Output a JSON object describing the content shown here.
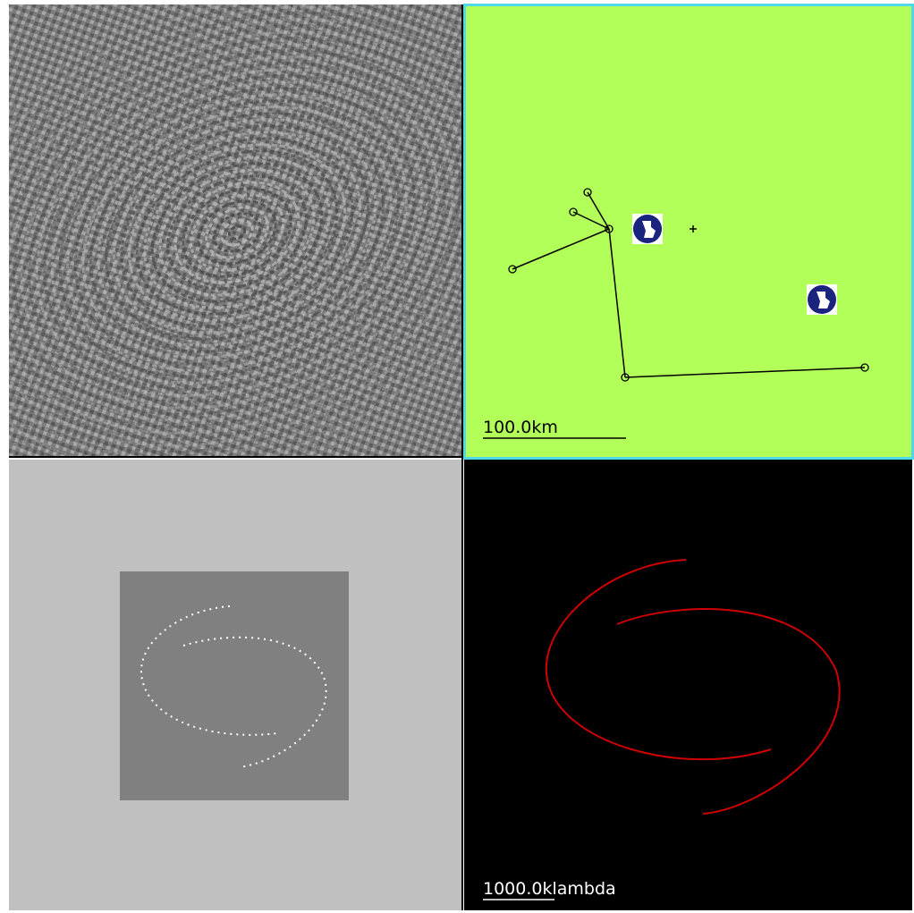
{
  "panels": {
    "array": {
      "scale_label": "100.0km"
    },
    "uv_coverage": {
      "scale_label": "1000.0klambda"
    }
  }
}
